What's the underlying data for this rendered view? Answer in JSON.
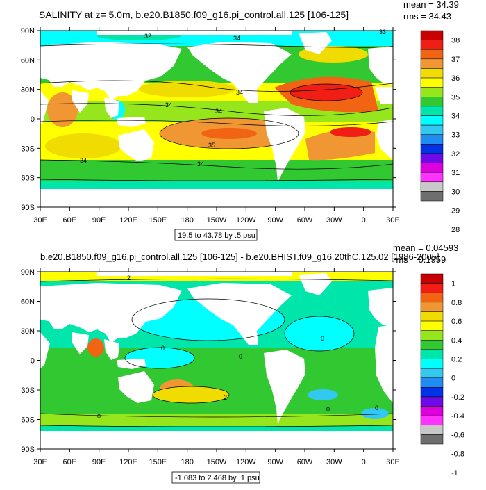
{
  "panels": [
    {
      "id": "top",
      "title": "SALINITY at z=   5.0m, b.e20.B1850.f09_g16.pi_control.all.125 [106-125]",
      "stats": [
        "mean = 34.39",
        "rms = 34.43"
      ],
      "lat_labels": [
        "90N",
        "60N",
        "30N",
        "0",
        "30S",
        "60S",
        "90S"
      ],
      "lon_labels": [
        "30E",
        "60E",
        "90E",
        "120E",
        "150E",
        "180",
        "150W",
        "120W",
        "90W",
        "60W",
        "30W",
        "0",
        "30E"
      ],
      "range_note": "19.5 to 43.78 by .5 psu",
      "contour_labels": [
        "32",
        "33",
        "34",
        "34",
        "34",
        "35",
        "34",
        "34",
        "34"
      ],
      "colorbar": {
        "labels": [
          "38",
          "37",
          "36",
          "35",
          "34",
          "33",
          "32",
          "31",
          "30",
          "29",
          "28"
        ],
        "colors": [
          "#c80000",
          "#f01e14",
          "#f06414",
          "#f09632",
          "#f0dc00",
          "#ffff00",
          "#96e61e",
          "#32c832",
          "#00e6aa",
          "#00ffff",
          "#32c8f0",
          "#1e8cf0",
          "#0032e6",
          "#6e0ae6",
          "#dc00dc",
          "#ff32ff",
          "#c8c8c8",
          "#6e6e6e"
        ]
      }
    },
    {
      "id": "bottom",
      "title": "b.e20.B1850.f09_g16.pi_control.all.125 [106-125] - b.e20.BHIST.f09_g16.20thC.125.02 [1986-2005]",
      "stats": [
        "mean = 0.04593",
        "rms = 0.1959"
      ],
      "lat_labels": [
        "90N",
        "60N",
        "30N",
        "0",
        "30S",
        "60S",
        "90S"
      ],
      "lon_labels": [
        "30E",
        "60E",
        "90E",
        "120E",
        "150E",
        "180",
        "150W",
        "120W",
        "90W",
        "60W",
        "30W",
        "0",
        "30E"
      ],
      "range_note": "-1.083 to 2.468 by .1 psu",
      "contour_labels": [
        "2",
        "0",
        "0",
        "0",
        "0",
        "2",
        "0",
        "0"
      ],
      "colorbar": {
        "labels": [
          "1",
          "0.8",
          "0.6",
          "0.4",
          "0.2",
          "0",
          "-0.2",
          "-0.4",
          "-0.6",
          "-0.8",
          "-1"
        ],
        "colors": [
          "#c80000",
          "#f01e14",
          "#f06414",
          "#f09632",
          "#f0dc00",
          "#ffff00",
          "#96e61e",
          "#32c832",
          "#00e6aa",
          "#00ffff",
          "#32c8f0",
          "#1e8cf0",
          "#0032e6",
          "#6e0ae6",
          "#dc00dc",
          "#ff32ff",
          "#c8c8c8",
          "#6e6e6e"
        ]
      }
    }
  ]
}
